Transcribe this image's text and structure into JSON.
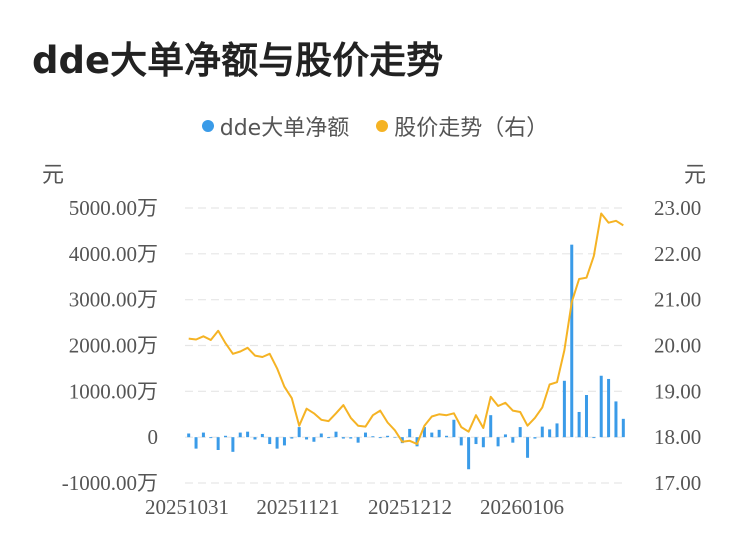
{
  "title": "dde大单净额与股价走势",
  "legend": {
    "series1": "dde大单净额",
    "series2": "股价走势（右）"
  },
  "units": {
    "left": "元",
    "right": "元"
  },
  "colors": {
    "bar": "#3a9be8",
    "line": "#f5b324",
    "grid": "#e6e6e6"
  },
  "chart_data": {
    "type": "bar",
    "title": "dde大单净额与股价走势",
    "ylabel_left": "元",
    "ylabel_right": "元",
    "ylim_left": [
      -1000,
      5000
    ],
    "ylim_right": [
      17,
      23
    ],
    "y_ticks_left": [
      "5000.00万",
      "4000.00万",
      "3000.00万",
      "2000.00万",
      "1000.00万",
      "0",
      "-1000.00万"
    ],
    "y_ticks_right": [
      "23.00",
      "22.00",
      "21.00",
      "20.00",
      "19.00",
      "18.00",
      "17.00"
    ],
    "x_tick_labels": [
      "20251031",
      "20251121",
      "20251212",
      "20260106"
    ],
    "grid": true,
    "legend_position": "top-center",
    "series": [
      {
        "name": "dde大单净额",
        "type": "bar",
        "unit": "万",
        "values": [
          80,
          -250,
          100,
          -20,
          -280,
          30,
          -320,
          100,
          120,
          -50,
          70,
          -150,
          -250,
          -180,
          -30,
          220,
          -50,
          -100,
          80,
          -20,
          120,
          -30,
          -30,
          -120,
          100,
          20,
          -20,
          30,
          -10,
          -130,
          180,
          -200,
          220,
          100,
          160,
          30,
          380,
          -180,
          -700,
          -150,
          -220,
          480,
          -200,
          60,
          -120,
          220,
          -450,
          -30,
          230,
          170,
          300,
          1230,
          4200,
          550,
          920,
          -20,
          1340,
          1270,
          780,
          400
        ]
      },
      {
        "name": "股价走势（右）",
        "type": "line",
        "values": [
          20.15,
          20.13,
          20.2,
          20.12,
          20.32,
          20.05,
          19.82,
          19.87,
          19.95,
          19.78,
          19.75,
          19.82,
          19.5,
          19.1,
          18.85,
          18.25,
          18.62,
          18.52,
          18.38,
          18.35,
          18.52,
          18.7,
          18.42,
          18.25,
          18.23,
          18.48,
          18.58,
          18.32,
          18.15,
          17.9,
          17.92,
          17.85,
          18.25,
          18.45,
          18.5,
          18.48,
          18.52,
          18.22,
          18.12,
          18.48,
          18.2,
          18.88,
          18.68,
          18.75,
          18.58,
          18.55,
          18.25,
          18.42,
          18.65,
          19.15,
          19.2,
          19.9,
          20.95,
          21.45,
          21.48,
          21.95,
          22.88,
          22.68,
          22.72,
          22.62
        ]
      }
    ]
  }
}
